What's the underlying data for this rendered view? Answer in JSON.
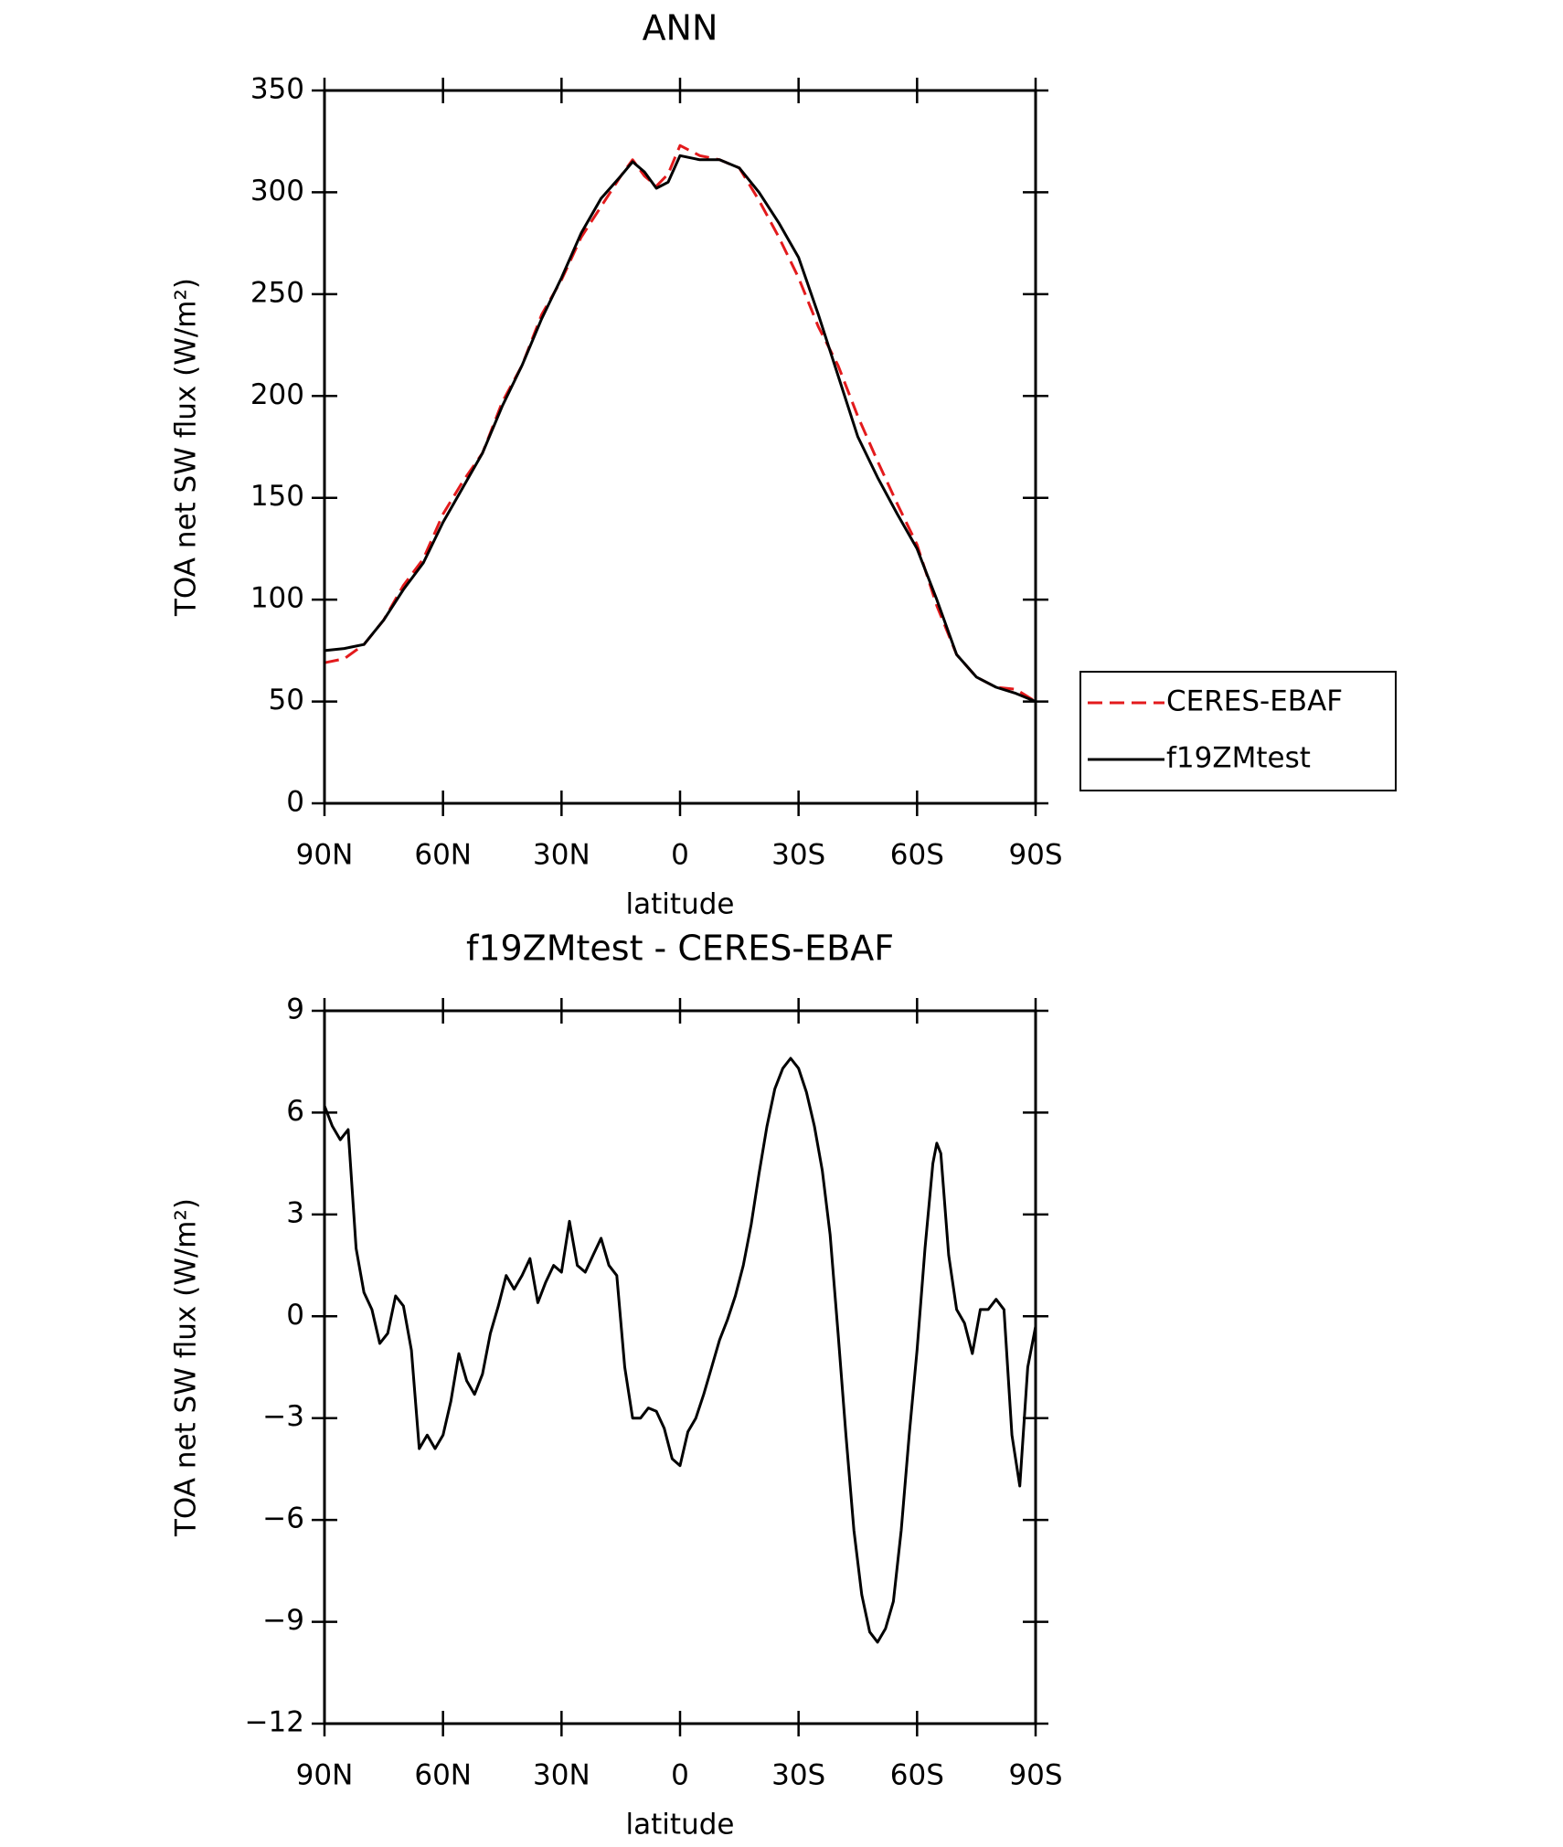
{
  "chart_data": [
    {
      "type": "line",
      "title": "ANN",
      "xlabel": "latitude",
      "ylabel": "TOA net SW flux (W/m²)",
      "xlim": [
        90,
        -90
      ],
      "xticks": [
        {
          "value": 90,
          "label": "90N"
        },
        {
          "value": 60,
          "label": "60N"
        },
        {
          "value": 30,
          "label": "30N"
        },
        0,
        {
          "value": -30,
          "label": "30S"
        },
        {
          "value": -60,
          "label": "60S"
        },
        {
          "value": -90,
          "label": "90S"
        }
      ],
      "ylim": [
        0,
        350
      ],
      "yticks": [
        0,
        50,
        100,
        150,
        200,
        250,
        300,
        350
      ],
      "legend": "right",
      "x": [
        90,
        85,
        80,
        75,
        70,
        65,
        60,
        55,
        50,
        45,
        40,
        35,
        30,
        25,
        20,
        15,
        12,
        9,
        6,
        3,
        0,
        -5,
        -10,
        -15,
        -20,
        -25,
        -30,
        -35,
        -40,
        -45,
        -50,
        -55,
        -60,
        -65,
        -70,
        -75,
        -80,
        -85,
        -90
      ],
      "series": [
        {
          "name": "CERES-EBAF",
          "color": "#e31a1c",
          "line_style": "dashed",
          "values": [
            69,
            71,
            78,
            90,
            107,
            120,
            142,
            158,
            172,
            197,
            215,
            240,
            257,
            278,
            293,
            308,
            316,
            308,
            303,
            309,
            323,
            318,
            316,
            312,
            296,
            278,
            258,
            234,
            215,
            190,
            168,
            147,
            127,
            97,
            73,
            62,
            57,
            56,
            50
          ]
        },
        {
          "name": "f19ZMtest",
          "color": "#000000",
          "line_style": "solid",
          "values": [
            75,
            76,
            78,
            90,
            105,
            118,
            138,
            155,
            172,
            195,
            215,
            238,
            258,
            280,
            297,
            308,
            315,
            310,
            302,
            305,
            318,
            316,
            316,
            312,
            300,
            285,
            268,
            240,
            210,
            180,
            160,
            142,
            125,
            100,
            73,
            62,
            57,
            54,
            50
          ]
        }
      ]
    },
    {
      "type": "line",
      "title": "f19ZMtest - CERES-EBAF",
      "xlabel": "latitude",
      "ylabel": "TOA net SW flux (W/m²)",
      "xlim": [
        90,
        -90
      ],
      "xticks": [
        {
          "value": 90,
          "label": "90N"
        },
        {
          "value": 60,
          "label": "60N"
        },
        {
          "value": 30,
          "label": "30N"
        },
        0,
        {
          "value": -30,
          "label": "30S"
        },
        {
          "value": -60,
          "label": "60S"
        },
        {
          "value": -90,
          "label": "90S"
        }
      ],
      "ylim": [
        -12,
        9
      ],
      "yticks": [
        {
          "value": -12,
          "label": "−12"
        },
        {
          "value": -9,
          "label": "−9"
        },
        {
          "value": -6,
          "label": "−6"
        },
        {
          "value": -3,
          "label": "−3"
        },
        0,
        3,
        6,
        9
      ],
      "x": [
        90,
        88,
        86,
        84,
        82,
        80,
        78,
        76,
        74,
        72,
        70,
        68,
        66,
        64,
        62,
        60,
        58,
        56,
        54,
        52,
        50,
        48,
        46,
        44,
        42,
        40,
        38,
        36,
        34,
        32,
        30,
        28,
        26,
        24,
        22,
        20,
        18,
        16,
        14,
        12,
        10,
        8,
        6,
        4,
        2,
        0,
        -2,
        -4,
        -6,
        -8,
        -10,
        -12,
        -14,
        -16,
        -18,
        -20,
        -22,
        -24,
        -26,
        -28,
        -30,
        -32,
        -34,
        -36,
        -38,
        -40,
        -42,
        -44,
        -46,
        -48,
        -50,
        -52,
        -54,
        -56,
        -58,
        -60,
        -62,
        -64,
        -65,
        -66,
        -68,
        -70,
        -72,
        -74,
        -76,
        -78,
        -80,
        -82,
        -84,
        -86,
        -88,
        -90
      ],
      "series": [
        {
          "color": "#000000",
          "line_style": "solid",
          "values": [
            6.2,
            5.6,
            5.2,
            5.5,
            2.0,
            0.7,
            0.2,
            -0.8,
            -0.5,
            0.6,
            0.3,
            -1.0,
            -3.9,
            -3.5,
            -3.9,
            -3.5,
            -2.5,
            -1.1,
            -1.9,
            -2.3,
            -1.7,
            -0.5,
            0.3,
            1.2,
            0.8,
            1.2,
            1.7,
            0.4,
            1.0,
            1.5,
            1.3,
            2.8,
            1.5,
            1.3,
            1.8,
            2.3,
            1.5,
            1.2,
            -1.5,
            -3.0,
            -3.0,
            -2.7,
            -2.8,
            -3.3,
            -4.2,
            -4.4,
            -3.4,
            -3.0,
            -2.3,
            -1.5,
            -0.7,
            -0.1,
            0.6,
            1.5,
            2.7,
            4.2,
            5.6,
            6.7,
            7.3,
            7.6,
            7.3,
            6.6,
            5.6,
            4.3,
            2.4,
            -0.5,
            -3.5,
            -6.3,
            -8.2,
            -9.3,
            -9.6,
            -9.2,
            -8.4,
            -6.3,
            -3.5,
            -1.0,
            2.0,
            4.5,
            5.1,
            4.8,
            1.8,
            0.2,
            -0.2,
            -1.1,
            0.2,
            0.2,
            0.5,
            0.2,
            -3.5,
            -5.0,
            -1.5,
            -0.3
          ]
        }
      ]
    }
  ]
}
